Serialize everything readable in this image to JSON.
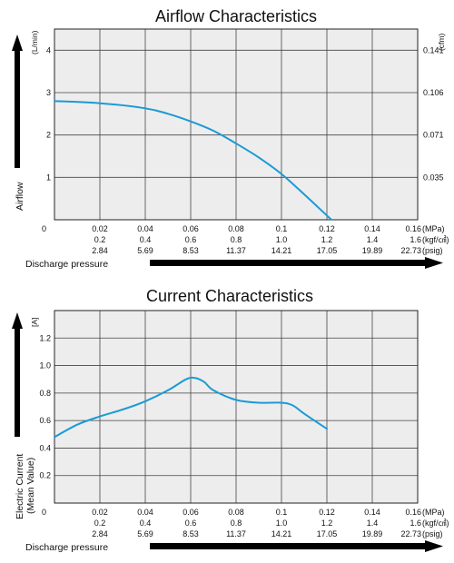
{
  "chart_data": [
    {
      "type": "line",
      "title": "Airflow Characteristics",
      "ylabel": "Airflow",
      "y_unit": "(L/min)",
      "y2_unit": "(cfm)",
      "xlabel": "Discharge pressure",
      "xlim": [
        0,
        0.16
      ],
      "ylim": [
        0,
        4.5
      ],
      "y_ticks": [
        {
          "value": 0,
          "label": "0"
        },
        {
          "value": 1,
          "label": "1"
        },
        {
          "value": 2,
          "label": "2"
        },
        {
          "value": 3,
          "label": "3"
        },
        {
          "value": 4,
          "label": "4"
        }
      ],
      "y2_ticks": [
        {
          "value": 1,
          "label": "0.035"
        },
        {
          "value": 2,
          "label": "0.071"
        },
        {
          "value": 3,
          "label": "0.106"
        },
        {
          "value": 4,
          "label": "0.141"
        }
      ],
      "x_ticks_mpa": [
        "0.02",
        "0.04",
        "0.06",
        "0.08",
        "0.1",
        "0.12",
        "0.14",
        "0.16"
      ],
      "x_ticks_kgf": [
        "0.2",
        "0.4",
        "0.6",
        "0.8",
        "1.0",
        "1.2",
        "1.4",
        "1.6"
      ],
      "x_ticks_psig": [
        "2.84",
        "5.69",
        "8.53",
        "11.37",
        "14.21",
        "17.05",
        "19.89",
        "22.73"
      ],
      "x_unit_mpa": "(MPa)",
      "x_unit_kgf": "(kgf/㎠)",
      "x_unit_psig": "(psig)",
      "grid": true,
      "x": [
        0,
        0.02,
        0.04,
        0.05,
        0.06,
        0.07,
        0.08,
        0.09,
        0.1,
        0.11,
        0.12,
        0.122
      ],
      "y": [
        2.8,
        2.75,
        2.63,
        2.5,
        2.32,
        2.1,
        1.8,
        1.47,
        1.08,
        0.6,
        0.1,
        0.0
      ]
    },
    {
      "type": "line",
      "title": "Current Characteristics",
      "ylabel": "Electric Current",
      "ylabel2": "(Mean Value)",
      "y_unit": "[A]",
      "xlabel": "Discharge pressure",
      "xlim": [
        0,
        0.16
      ],
      "ylim": [
        0,
        1.4
      ],
      "y_ticks": [
        {
          "value": 0,
          "label": "0"
        },
        {
          "value": 0.2,
          "label": "0.2"
        },
        {
          "value": 0.4,
          "label": "0.4"
        },
        {
          "value": 0.6,
          "label": "0.6"
        },
        {
          "value": 0.8,
          "label": "0.8"
        },
        {
          "value": 1.0,
          "label": "1.0"
        },
        {
          "value": 1.2,
          "label": "1.2"
        }
      ],
      "x_ticks_mpa": [
        "0.02",
        "0.04",
        "0.06",
        "0.08",
        "0.1",
        "0.12",
        "0.14",
        "0.16"
      ],
      "x_ticks_kgf": [
        "0.2",
        "0.4",
        "0.6",
        "0.8",
        "1.0",
        "1.2",
        "1.4",
        "1.6"
      ],
      "x_ticks_psig": [
        "2.84",
        "5.69",
        "8.53",
        "11.37",
        "14.21",
        "17.05",
        "19.89",
        "22.73"
      ],
      "x_unit_mpa": "(MPa)",
      "x_unit_kgf": "(kgf/㎠)",
      "x_unit_psig": "(psig)",
      "grid": true,
      "x": [
        0,
        0.01,
        0.02,
        0.03,
        0.04,
        0.05,
        0.058,
        0.062,
        0.066,
        0.07,
        0.08,
        0.09,
        0.1,
        0.105,
        0.11,
        0.12
      ],
      "y": [
        0.48,
        0.57,
        0.63,
        0.68,
        0.74,
        0.82,
        0.9,
        0.91,
        0.88,
        0.82,
        0.75,
        0.73,
        0.73,
        0.71,
        0.65,
        0.54
      ]
    }
  ],
  "colors": {
    "curve": "#1a9ad6",
    "plot_background": "#ededed",
    "arrows": "#000000"
  }
}
